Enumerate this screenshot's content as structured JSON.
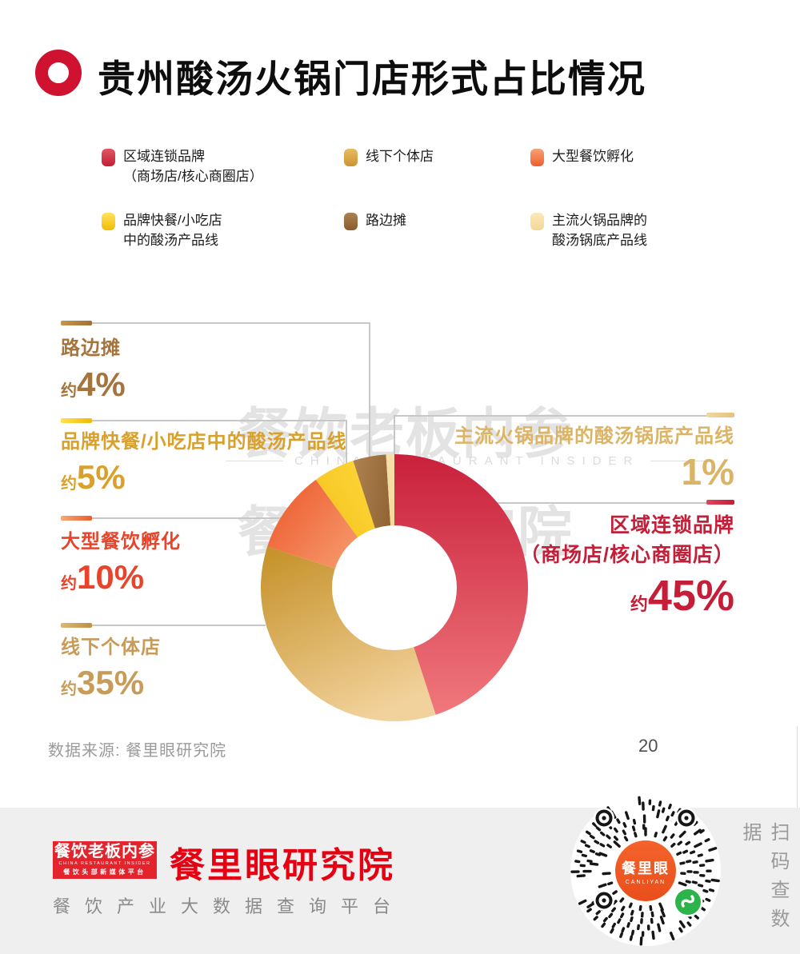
{
  "title": "贵州酸汤火锅门店形式占比情况",
  "legend": {
    "items": [
      {
        "line1": "区域连锁品牌",
        "line2": "（商场店/核心商圈店）",
        "swatch": [
          "#E25663",
          "#C21E37"
        ]
      },
      {
        "line1": "线下个体店",
        "swatch": [
          "#E7BC63",
          "#CD9430"
        ]
      },
      {
        "line1": "大型餐饮孵化",
        "swatch": [
          "#F6A376",
          "#ED5E2D"
        ]
      },
      {
        "line1": "品牌快餐/小吃店",
        "line2": "中的酸汤产品线",
        "swatch": [
          "#FFE45C",
          "#F2BB05"
        ]
      },
      {
        "line1": "路边摊",
        "swatch": [
          "#AC8150",
          "#8A5C2E"
        ]
      },
      {
        "line1": "主流火锅品牌的",
        "line2": "酸汤锅底产品线",
        "swatch": [
          "#FBE9BA",
          "#F3D795"
        ]
      }
    ]
  },
  "chart_data": {
    "type": "pie",
    "subtype": "donut",
    "title": "贵州酸汤火锅门店形式占比情况",
    "unit": "%",
    "start_angle_deg": 0,
    "direction": "clockwise",
    "series": [
      {
        "label": "区域连锁品牌（商场店/核心商圈店）",
        "value": 45,
        "approx": true,
        "c1": "#C9203C",
        "c2": "#F0787C",
        "grad": [
          0.5,
          0,
          0.5,
          1
        ]
      },
      {
        "label": "线下个体店",
        "value": 35,
        "approx": true,
        "c1": "#C6932C",
        "c2": "#F2D29C",
        "grad": [
          0.15,
          0,
          0.6,
          1
        ]
      },
      {
        "label": "大型餐饮孵化",
        "value": 10,
        "approx": true,
        "c1": "#ED5D31",
        "c2": "#F9B183",
        "grad": [
          0,
          0.2,
          1,
          0.9
        ]
      },
      {
        "label": "品牌快餐/小吃店中的酸汤产品线",
        "value": 5,
        "approx": true,
        "c1": "#FFDC40",
        "c2": "#F1BB13",
        "grad": [
          1,
          0,
          0,
          1
        ]
      },
      {
        "label": "路边摊",
        "value": 4,
        "approx": true,
        "c1": "#AF8350",
        "c2": "#8E6132",
        "grad": [
          0,
          0,
          1,
          0.5
        ]
      },
      {
        "label": "主流火锅品牌的酸汤锅底产品线",
        "value": 1,
        "approx": false,
        "c1": "#F6DFA9",
        "c2": "#F2D492",
        "grad": [
          0,
          0,
          0,
          1
        ]
      }
    ]
  },
  "callouts": [
    {
      "label": "路边摊",
      "prefix": "约",
      "value": "4%",
      "color": "#A4743C",
      "seg": [
        "#C8964F",
        "#A06F35"
      ]
    },
    {
      "label": "品牌快餐/小吃店中的酸汤产品线",
      "prefix": "约",
      "value": "5%",
      "color": "#D9A02B",
      "seg": [
        "#FFE14C",
        "#F0BA06"
      ]
    },
    {
      "label": "大型餐饮孵化",
      "prefix": "约",
      "value": "10%",
      "color": "#E8432B",
      "seg": [
        "#F6A878",
        "#EC5E2D"
      ]
    },
    {
      "label": "线下个体店",
      "prefix": "约",
      "value": "35%",
      "color": "#C79B58",
      "seg": [
        "#DFB873",
        "#BE8F45"
      ]
    },
    {
      "label": "主流火锅品牌的酸汤锅底产品线",
      "prefix": "",
      "value": "1%",
      "color": "#DCB465",
      "seg": [
        "#F0D9A3",
        "#E5C178"
      ]
    },
    {
      "label": "区域连锁品牌",
      "label2": "（商场店/核心商圈店）",
      "prefix": "约",
      "value": "45%",
      "color": "#C41E39",
      "seg": [
        "#E0475B",
        "#C21E38"
      ]
    }
  ],
  "watermark": {
    "cn1": "餐饮老板内参",
    "en": "CHINA RESTAURANT INSIDER",
    "cn2": "餐里眼研究院"
  },
  "source_note": "数据来源: 餐里眼研究院",
  "page_number": "20",
  "footer": {
    "logo": {
      "line1": "餐饮老板内参",
      "line2": "CHINA RESTAURANT INSIDER",
      "line3": "餐饮头部新媒体平台"
    },
    "brand": "餐里眼研究院",
    "tagline": "餐饮产业大数据查询平台",
    "qr": {
      "center_title": "餐里眼",
      "center_sub": "CANLIYAN",
      "side_text": "扫码查数据"
    },
    "colors": {
      "brand_red": "#E60012",
      "logo_bg": "#E3242C",
      "wechat_green": "#2CB44A",
      "qr_center": "#F1551F"
    }
  }
}
